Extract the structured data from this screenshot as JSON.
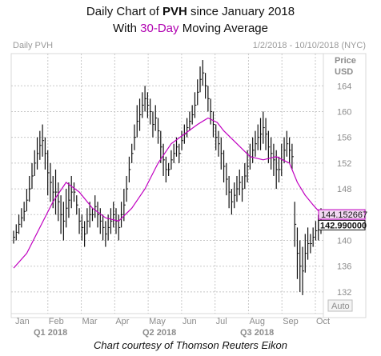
{
  "header": {
    "title_prefix": "Daily Chart of ",
    "title_ticker": "PVH",
    "title_suffix": " since January 2018",
    "subtitle_prefix": "With ",
    "subtitle_highlight": "30-Day",
    "subtitle_suffix": " Moving Average",
    "panel_label": "Daily PVH",
    "date_range": "1/2/2018 - 10/10/2018 (NYC)"
  },
  "caption": "Chart courtesy of Thomson Reuters Eikon",
  "chart_data": {
    "type": "ohlc",
    "ylabel": "Price USD",
    "ylabel_lines": [
      "Price",
      "USD"
    ],
    "ylim": [
      130,
      169
    ],
    "y_ticks": [
      132,
      136,
      140,
      144,
      148,
      152,
      156,
      160,
      164
    ],
    "scale_button": "Auto",
    "months": [
      "Jan",
      "Feb",
      "Mar",
      "Apr",
      "May",
      "Jun",
      "Jul",
      "Aug",
      "Sep",
      "Oct"
    ],
    "quarters": [
      "Q1 2018",
      "Q2 2018",
      "Q3 2018"
    ],
    "grid": true,
    "current_labels": [
      {
        "value": "144.152667",
        "series": "moving_average"
      },
      {
        "value": "142.990000",
        "series": "price"
      }
    ],
    "colors": {
      "price": "#111111",
      "moving_average": "#c000c0",
      "grid": "#c8c8c8"
    },
    "price_series": [
      [
        0,
        141.5,
        139.5
      ],
      [
        2,
        142.5,
        140
      ],
      [
        4,
        144,
        141
      ],
      [
        6,
        145,
        142
      ],
      [
        8,
        146,
        143
      ],
      [
        10,
        148,
        144.5
      ],
      [
        12,
        150,
        146
      ],
      [
        14,
        152,
        148
      ],
      [
        16,
        154,
        150
      ],
      [
        18,
        156,
        151
      ],
      [
        20,
        157,
        152.5
      ],
      [
        22,
        158,
        153
      ],
      [
        24,
        156,
        151
      ],
      [
        26,
        154,
        147
      ],
      [
        28,
        152,
        146
      ],
      [
        30,
        150,
        145
      ],
      [
        32,
        151,
        144
      ],
      [
        34,
        149,
        143
      ],
      [
        36,
        147,
        141
      ],
      [
        38,
        146,
        140
      ],
      [
        40,
        148,
        142
      ],
      [
        42,
        149,
        143.5
      ],
      [
        44,
        150,
        145
      ],
      [
        46,
        149,
        146
      ],
      [
        48,
        147,
        144
      ],
      [
        50,
        145,
        141
      ],
      [
        52,
        144,
        140
      ],
      [
        54,
        143,
        139
      ],
      [
        56,
        145,
        141
      ],
      [
        58,
        146,
        142
      ],
      [
        60,
        145,
        143
      ],
      [
        62,
        147,
        143.5
      ],
      [
        64,
        146,
        142
      ],
      [
        66,
        145,
        141
      ],
      [
        68,
        144,
        140
      ],
      [
        70,
        143,
        139
      ],
      [
        72,
        144,
        140
      ],
      [
        74,
        145,
        141
      ],
      [
        76,
        146,
        142
      ],
      [
        78,
        145,
        141
      ],
      [
        80,
        144,
        140
      ],
      [
        82,
        146,
        142
      ],
      [
        84,
        148,
        143
      ],
      [
        86,
        150,
        146
      ],
      [
        88,
        153,
        149
      ],
      [
        90,
        155,
        152
      ],
      [
        92,
        158,
        154
      ],
      [
        94,
        161,
        156
      ],
      [
        96,
        162,
        157
      ],
      [
        98,
        163,
        159
      ],
      [
        100,
        164,
        160
      ],
      [
        102,
        163,
        159
      ],
      [
        104,
        162,
        158
      ],
      [
        106,
        160,
        156
      ],
      [
        108,
        161,
        157
      ],
      [
        110,
        159,
        155
      ],
      [
        112,
        157,
        152
      ],
      [
        114,
        155,
        150
      ],
      [
        116,
        153,
        149
      ],
      [
        118,
        152,
        150
      ],
      [
        120,
        154,
        151
      ],
      [
        122,
        155,
        152
      ],
      [
        124,
        156,
        153
      ],
      [
        126,
        155,
        152
      ],
      [
        128,
        157,
        154
      ],
      [
        130,
        158,
        155
      ],
      [
        132,
        159,
        156
      ],
      [
        134,
        160,
        157
      ],
      [
        136,
        161,
        158
      ],
      [
        138,
        163,
        159
      ],
      [
        140,
        165,
        161
      ],
      [
        142,
        167,
        163
      ],
      [
        144,
        168,
        164
      ],
      [
        146,
        166,
        162
      ],
      [
        148,
        164,
        160
      ],
      [
        150,
        162,
        158
      ],
      [
        152,
        160,
        156
      ],
      [
        154,
        158,
        154
      ],
      [
        156,
        157,
        153
      ],
      [
        158,
        156,
        151
      ],
      [
        160,
        154,
        149
      ],
      [
        162,
        152,
        147
      ],
      [
        164,
        150,
        145
      ],
      [
        166,
        148,
        144
      ],
      [
        168,
        149,
        145
      ],
      [
        170,
        150,
        146
      ],
      [
        172,
        151,
        147
      ],
      [
        174,
        150,
        146
      ],
      [
        176,
        152,
        148
      ],
      [
        178,
        154,
        149
      ],
      [
        180,
        155,
        151
      ],
      [
        182,
        156,
        152
      ],
      [
        184,
        157,
        153
      ],
      [
        186,
        158,
        154
      ],
      [
        188,
        159,
        154
      ],
      [
        190,
        160,
        155
      ],
      [
        192,
        159,
        154
      ],
      [
        194,
        157,
        152
      ],
      [
        196,
        156,
        151
      ],
      [
        198,
        155,
        150
      ],
      [
        200,
        154,
        148
      ],
      [
        202,
        153,
        149
      ],
      [
        204,
        155,
        150
      ],
      [
        206,
        156,
        152
      ],
      [
        208,
        157,
        153
      ],
      [
        210,
        156,
        152
      ],
      [
        212,
        155,
        151
      ],
      [
        214,
        146,
        139
      ],
      [
        216,
        142,
        134
      ],
      [
        218,
        140,
        132
      ],
      [
        220,
        139,
        131.5
      ],
      [
        222,
        141,
        135
      ],
      [
        224,
        142,
        137
      ],
      [
        226,
        141,
        138
      ],
      [
        228,
        142,
        139
      ],
      [
        230,
        143,
        140
      ],
      [
        232,
        144,
        140
      ],
      [
        234,
        145,
        141
      ]
    ],
    "moving_average": [
      [
        0,
        135.7
      ],
      [
        10,
        138
      ],
      [
        20,
        142
      ],
      [
        30,
        146
      ],
      [
        40,
        149
      ],
      [
        50,
        147.5
      ],
      [
        60,
        145
      ],
      [
        70,
        143.5
      ],
      [
        80,
        143
      ],
      [
        90,
        145
      ],
      [
        100,
        148
      ],
      [
        110,
        152
      ],
      [
        120,
        155
      ],
      [
        130,
        156.5
      ],
      [
        140,
        158
      ],
      [
        148,
        159
      ],
      [
        155,
        158.3
      ],
      [
        160,
        157
      ],
      [
        170,
        155
      ],
      [
        180,
        153
      ],
      [
        190,
        152.5
      ],
      [
        200,
        153
      ],
      [
        210,
        152
      ],
      [
        216,
        149
      ],
      [
        222,
        147
      ],
      [
        228,
        145.5
      ],
      [
        234,
        144.15
      ]
    ]
  }
}
